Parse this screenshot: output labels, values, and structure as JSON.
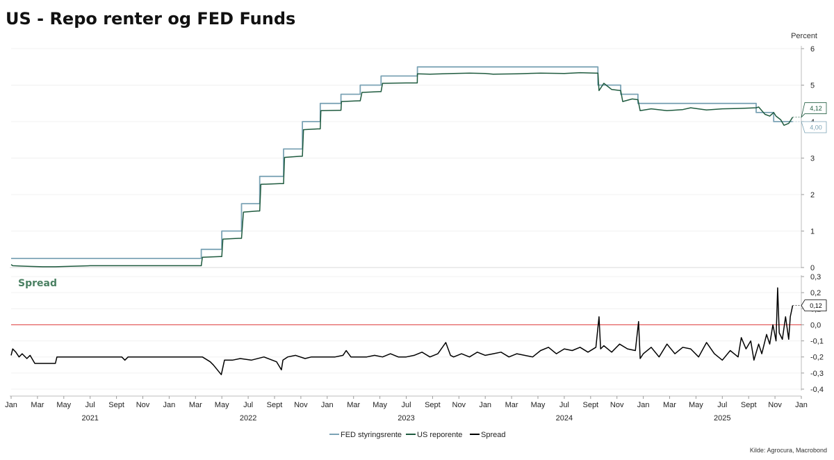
{
  "chart_data": {
    "title": "US - Repo renter og FED Funds",
    "source": "Kilde: Agrocura, Macrobond",
    "x_axis": {
      "month_ticks": [
        "Jan",
        "Mar",
        "May",
        "Jul",
        "Sept",
        "Nov",
        "Jan",
        "Mar",
        "May",
        "Jul",
        "Sept",
        "Nov",
        "Jan",
        "Mar",
        "May",
        "Jul",
        "Sept",
        "Nov",
        "Jan",
        "Mar",
        "May",
        "Jul",
        "Sept",
        "Nov",
        "Jan",
        "Mar",
        "May",
        "Jul",
        "Sept",
        "Nov",
        "Jan"
      ],
      "month_tick_t": [
        2021.0,
        2021.1667,
        2021.3333,
        2021.5,
        2021.6667,
        2021.8333,
        2022.0,
        2022.1667,
        2022.3333,
        2022.5,
        2022.6667,
        2022.8333,
        2023.0,
        2023.1667,
        2023.3333,
        2023.5,
        2023.6667,
        2023.8333,
        2024.0,
        2024.1667,
        2024.3333,
        2024.5,
        2024.6667,
        2024.8333,
        2025.0,
        2025.1667,
        2025.3333,
        2025.5,
        2025.6667,
        2025.8333,
        2026.0
      ],
      "years": [
        "2021",
        "2022",
        "2023",
        "2024",
        "2025"
      ],
      "range": [
        2021.0,
        2026.0
      ]
    },
    "legend": [
      {
        "name": "FED styringsrente",
        "color": "#7ba3b5"
      },
      {
        "name": "US reporente",
        "color": "#1e5a3e"
      },
      {
        "name": "Spread",
        "color": "#000000"
      }
    ],
    "panels": [
      {
        "id": "rates",
        "type": "line",
        "unit_label": "Percent",
        "ylim": [
          0,
          6
        ],
        "yticks": [
          0,
          1,
          2,
          3,
          4,
          5,
          6
        ],
        "ytick_labels": [
          "0",
          "1",
          "2",
          "3",
          "4",
          "5",
          "6"
        ],
        "series": [
          {
            "name": "FED styringsrente",
            "color": "#7ba3b5",
            "step": true,
            "t": [
              2021.0,
              2022.203,
              2022.333,
              2022.458,
              2022.573,
              2022.724,
              2022.843,
              2022.956,
              2023.087,
              2023.209,
              2023.341,
              2023.571,
              2024.713,
              2024.857,
              2024.966,
              2025.714,
              2025.825,
              2025.945
            ],
            "values": [
              0.25,
              0.5,
              1.0,
              1.75,
              2.5,
              3.25,
              4.0,
              4.5,
              4.75,
              5.0,
              5.25,
              5.5,
              5.0,
              4.75,
              4.5,
              4.25,
              4.0,
              4.0
            ],
            "end_label": "4,00"
          },
          {
            "name": "US reporente",
            "color": "#1e5a3e",
            "t": [
              2021.0,
              2021.01,
              2021.06,
              2021.12,
              2021.2,
              2021.28,
              2021.5,
              2021.7,
              2021.9,
              2022.1,
              2022.203,
              2022.21,
              2022.32,
              2022.333,
              2022.34,
              2022.44,
              2022.458,
              2022.47,
              2022.56,
              2022.573,
              2022.58,
              2022.7,
              2022.724,
              2022.73,
              2022.83,
              2022.843,
              2022.85,
              2022.94,
              2022.956,
              2022.96,
              2023.08,
              2023.087,
              2023.09,
              2023.2,
              2023.209,
              2023.22,
              2023.33,
              2023.341,
              2023.35,
              2023.5,
              2023.57,
              2023.571,
              2023.65,
              2023.8,
              2023.9,
              2024.0,
              2024.05,
              2024.2,
              2024.35,
              2024.5,
              2024.6,
              2024.7,
              2024.713,
              2024.72,
              2024.75,
              2024.8,
              2024.857,
              2024.87,
              2024.93,
              2024.966,
              2024.98,
              2025.05,
              2025.15,
              2025.25,
              2025.3,
              2025.4,
              2025.5,
              2025.6,
              2025.714,
              2025.73,
              2025.77,
              2025.8,
              2025.825,
              2025.84,
              2025.87,
              2025.89,
              2025.92,
              2025.945
            ],
            "values": [
              0.08,
              0.05,
              0.04,
              0.03,
              0.02,
              0.02,
              0.05,
              0.05,
              0.05,
              0.05,
              0.05,
              0.28,
              0.3,
              0.3,
              0.78,
              0.8,
              0.8,
              1.52,
              1.55,
              1.55,
              2.28,
              2.3,
              2.3,
              3.02,
              3.05,
              3.05,
              3.78,
              3.8,
              3.8,
              4.3,
              4.31,
              4.31,
              4.55,
              4.57,
              4.57,
              4.8,
              4.82,
              4.82,
              5.05,
              5.06,
              5.06,
              5.31,
              5.3,
              5.32,
              5.33,
              5.32,
              5.3,
              5.31,
              5.33,
              5.32,
              5.34,
              5.33,
              5.33,
              4.85,
              5.05,
              4.88,
              4.85,
              4.55,
              4.62,
              4.6,
              4.3,
              4.35,
              4.3,
              4.33,
              4.38,
              4.32,
              4.35,
              4.36,
              4.38,
              4.4,
              4.2,
              4.15,
              4.25,
              4.15,
              4.05,
              3.9,
              3.95,
              4.12
            ],
            "end_label": "4,12"
          }
        ]
      },
      {
        "id": "spread",
        "type": "line",
        "title": "Spread",
        "ylim": [
          -0.4,
          0.3
        ],
        "yticks": [
          -0.4,
          -0.3,
          -0.2,
          -0.1,
          0.0,
          0.1,
          0.2,
          0.3
        ],
        "ytick_labels": [
          "-0,4",
          "-0,3",
          "-0,2",
          "-0,1",
          "0,0",
          "0,1",
          "0,2",
          "0,3"
        ],
        "reference_line": {
          "value": 0.0,
          "color": "#e03b3b"
        },
        "series": [
          {
            "name": "Spread",
            "color": "#000000",
            "t": [
              2021.0,
              2021.01,
              2021.03,
              2021.05,
              2021.07,
              2021.1,
              2021.12,
              2021.15,
              2021.2,
              2021.28,
              2021.29,
              2021.4,
              2021.6,
              2021.7,
              2021.72,
              2021.74,
              2021.9,
              2022.0,
              2022.1,
              2022.21,
              2022.26,
              2022.28,
              2022.33,
              2022.35,
              2022.4,
              2022.45,
              2022.52,
              2022.6,
              2022.68,
              2022.71,
              2022.72,
              2022.75,
              2022.8,
              2022.86,
              2022.9,
              2022.95,
              2023.0,
              2023.05,
              2023.1,
              2023.12,
              2023.15,
              2023.2,
              2023.25,
              2023.3,
              2023.35,
              2023.4,
              2023.45,
              2023.5,
              2023.55,
              2023.6,
              2023.65,
              2023.7,
              2023.75,
              2023.78,
              2023.8,
              2023.85,
              2023.9,
              2023.95,
              2024.0,
              2024.05,
              2024.1,
              2024.15,
              2024.2,
              2024.3,
              2024.35,
              2024.4,
              2024.45,
              2024.5,
              2024.55,
              2024.6,
              2024.65,
              2024.7,
              2024.72,
              2024.73,
              2024.75,
              2024.8,
              2024.85,
              2024.9,
              2024.95,
              2024.97,
              2024.98,
              2025.0,
              2025.05,
              2025.1,
              2025.15,
              2025.2,
              2025.25,
              2025.3,
              2025.35,
              2025.4,
              2025.45,
              2025.5,
              2025.55,
              2025.6,
              2025.62,
              2025.65,
              2025.68,
              2025.7,
              2025.73,
              2025.75,
              2025.78,
              2025.8,
              2025.82,
              2025.84,
              2025.85,
              2025.86,
              2025.88,
              2025.9,
              2025.92,
              2025.93,
              2025.945
            ],
            "values": [
              -0.19,
              -0.15,
              -0.17,
              -0.2,
              -0.18,
              -0.21,
              -0.19,
              -0.24,
              -0.24,
              -0.24,
              -0.2,
              -0.2,
              -0.2,
              -0.2,
              -0.22,
              -0.2,
              -0.2,
              -0.2,
              -0.2,
              -0.2,
              -0.23,
              -0.25,
              -0.31,
              -0.22,
              -0.22,
              -0.21,
              -0.22,
              -0.2,
              -0.23,
              -0.28,
              -0.22,
              -0.2,
              -0.19,
              -0.21,
              -0.2,
              -0.2,
              -0.2,
              -0.2,
              -0.19,
              -0.16,
              -0.2,
              -0.2,
              -0.2,
              -0.19,
              -0.2,
              -0.18,
              -0.2,
              -0.2,
              -0.19,
              -0.17,
              -0.2,
              -0.18,
              -0.11,
              -0.19,
              -0.2,
              -0.18,
              -0.2,
              -0.17,
              -0.19,
              -0.18,
              -0.17,
              -0.2,
              -0.18,
              -0.2,
              -0.16,
              -0.14,
              -0.18,
              -0.15,
              -0.16,
              -0.14,
              -0.17,
              -0.14,
              0.05,
              -0.15,
              -0.13,
              -0.17,
              -0.12,
              -0.15,
              -0.16,
              0.02,
              -0.21,
              -0.18,
              -0.14,
              -0.2,
              -0.12,
              -0.18,
              -0.14,
              -0.15,
              -0.2,
              -0.11,
              -0.18,
              -0.22,
              -0.16,
              -0.2,
              -0.08,
              -0.15,
              -0.1,
              -0.22,
              -0.12,
              -0.18,
              -0.06,
              -0.12,
              0.0,
              -0.1,
              0.23,
              -0.05,
              -0.09,
              0.05,
              -0.09,
              0.05,
              0.12
            ],
            "end_label": "0,12"
          }
        ]
      }
    ]
  }
}
